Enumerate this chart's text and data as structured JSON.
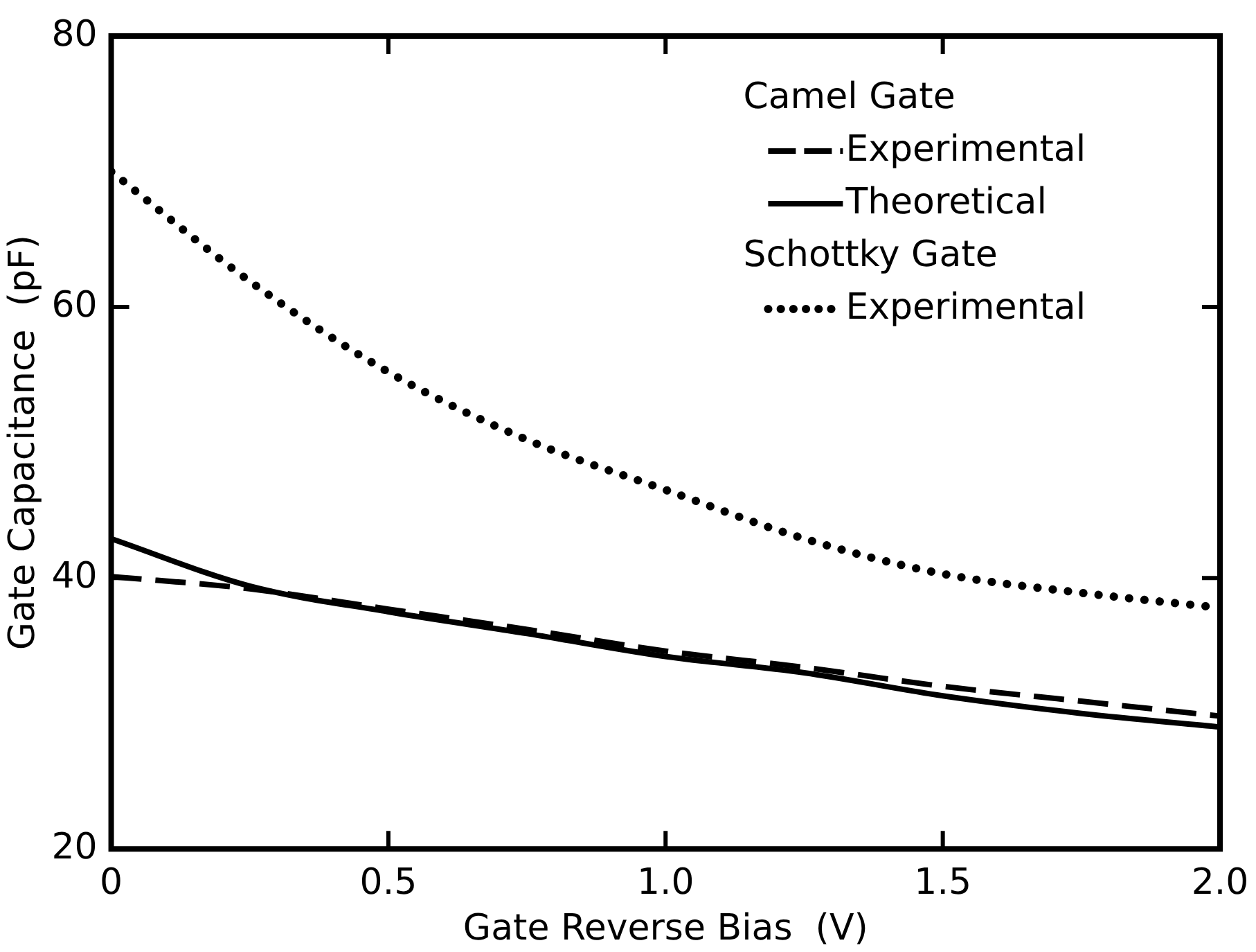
{
  "chart_data": {
    "type": "line",
    "xlabel": "Gate Reverse Bias  (V)",
    "ylabel": "Gate Capacitance  (pF)",
    "x": [
      0,
      0.25,
      0.5,
      0.75,
      1.0,
      1.25,
      1.5,
      1.75,
      2.0
    ],
    "series": [
      {
        "name": "Experimental",
        "color": "#000000",
        "line_style": "dashed",
        "values": [
          40.1,
          39.2,
          37.7,
          36.2,
          34.6,
          33.4,
          32.0,
          30.9,
          29.8
        ]
      },
      {
        "name": "Theoretical",
        "color": "#000000",
        "line_style": "solid",
        "values": [
          42.9,
          39.4,
          37.5,
          35.9,
          34.2,
          33.0,
          31.3,
          30.0,
          29.0
        ]
      },
      {
        "name": "Experimental",
        "color": "#000000",
        "line_style": "dotted",
        "values": [
          70,
          61.9,
          55.2,
          50.2,
          46.5,
          42.9,
          40.3,
          38.9,
          37.8
        ]
      }
    ],
    "xlim": [
      0,
      2.0
    ],
    "xticks": [
      0,
      {
        "value": 0.5,
        "label": "0.5"
      },
      {
        "value": 1,
        "label": "1.0"
      },
      {
        "value": 1.5,
        "label": "1.5"
      },
      {
        "value": 2,
        "label": "2.0"
      }
    ],
    "ylim": [
      20,
      80
    ],
    "yticks": [
      20,
      40,
      60,
      80
    ],
    "legend": "top right",
    "marker": "none",
    "annotations": [
      "Camel Gate",
      "Schottky Gate"
    ]
  }
}
